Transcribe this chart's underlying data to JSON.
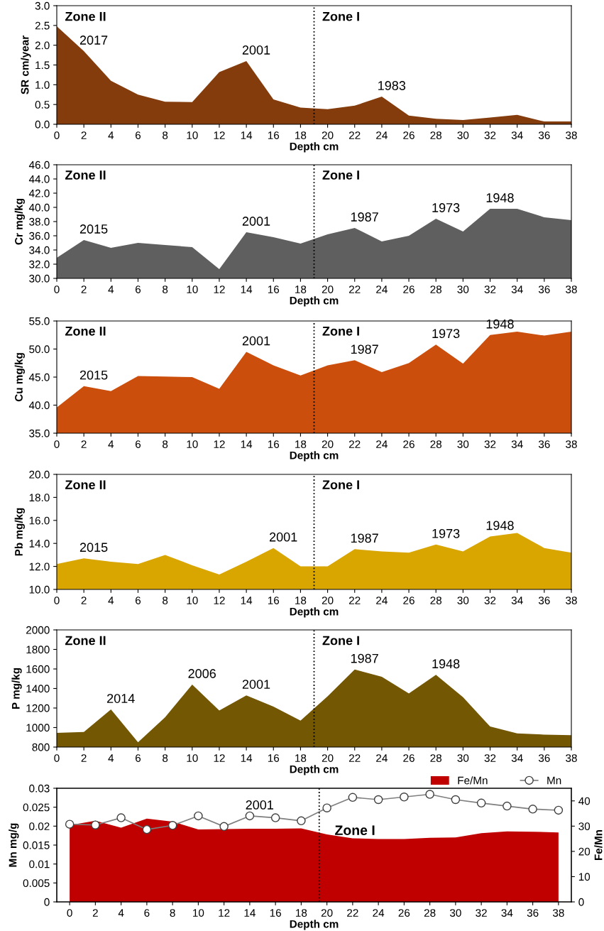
{
  "chart_data": [
    {
      "type": "area",
      "x": [
        0,
        2,
        4,
        6,
        8,
        10,
        12,
        14,
        16,
        18,
        20,
        22,
        24,
        26,
        28,
        30,
        32,
        34,
        36,
        38
      ],
      "xlim": [
        0,
        38
      ],
      "xticks": [
        0,
        2,
        4,
        6,
        8,
        10,
        12,
        14,
        16,
        18,
        20,
        22,
        24,
        26,
        28,
        30,
        32,
        34,
        36,
        38
      ],
      "xlabel": "Depth cm",
      "ylabel": "SR cm/year",
      "ylim": [
        0,
        3
      ],
      "yticks": [
        {
          "value": 0,
          "label": "0.0"
        },
        {
          "value": 0.5,
          "label": "0.5"
        },
        {
          "value": 1,
          "label": "1.0"
        },
        {
          "value": 1.5,
          "label": "1.5"
        },
        {
          "value": 2,
          "label": "2.0"
        },
        {
          "value": 2.5,
          "label": "2.5"
        },
        {
          "value": 3,
          "label": "3.0"
        }
      ],
      "series": [
        {
          "color": "#843c0c",
          "values": [
            2.48,
            1.85,
            1.1,
            0.75,
            0.57,
            0.56,
            1.32,
            1.6,
            0.63,
            0.42,
            0.38,
            0.47,
            0.7,
            0.22,
            0.14,
            0.11,
            0.17,
            0.24,
            0.07,
            0.07
          ]
        }
      ],
      "ref_lines": [
        {
          "axis": "x",
          "value": 19,
          "line_style": "dotted",
          "color": "#000000"
        }
      ],
      "annotations": [
        "Zone II",
        "Zone I",
        {
          "text": "2017",
          "x": 2,
          "y": 1.85
        },
        {
          "text": "2001",
          "x": 14,
          "y": 1.6
        },
        {
          "text": "1983",
          "x": 24,
          "y": 0.7
        }
      ],
      "grid": false
    },
    {
      "type": "area",
      "x": [
        0,
        2,
        4,
        6,
        8,
        10,
        12,
        14,
        16,
        18,
        20,
        22,
        24,
        26,
        28,
        30,
        32,
        34,
        36,
        38
      ],
      "xlim": [
        0,
        38
      ],
      "xticks": [
        0,
        2,
        4,
        6,
        8,
        10,
        12,
        14,
        16,
        18,
        20,
        22,
        24,
        26,
        28,
        30,
        32,
        34,
        36,
        38
      ],
      "xlabel": "Depth cm",
      "ylabel": "Cr mg/kg",
      "ylim": [
        30,
        46
      ],
      "yticks": [
        {
          "value": 30,
          "label": "30.0"
        },
        {
          "value": 32,
          "label": "32.0"
        },
        {
          "value": 34,
          "label": "34.0"
        },
        {
          "value": 36,
          "label": "36.0"
        },
        {
          "value": 38,
          "label": "38.0"
        },
        {
          "value": 40,
          "label": "40.0"
        },
        {
          "value": 42,
          "label": "42.0"
        },
        {
          "value": 44,
          "label": "44.0"
        },
        {
          "value": 46,
          "label": "46.0"
        }
      ],
      "series": [
        {
          "color": "#5f5f5f",
          "values": [
            32.9,
            35.4,
            34.3,
            35.0,
            34.7,
            34.4,
            31.3,
            36.5,
            35.8,
            34.9,
            36.2,
            37.1,
            35.2,
            36.0,
            38.4,
            36.6,
            39.8,
            39.8,
            38.6,
            38.2
          ]
        }
      ],
      "ref_lines": [
        {
          "axis": "x",
          "value": 19,
          "line_style": "dotted",
          "color": "#000000"
        }
      ],
      "annotations": [
        "Zone II",
        "Zone I",
        {
          "text": "2015",
          "x": 2,
          "y": 35.4
        },
        {
          "text": "2001",
          "x": 14,
          "y": 36.5
        },
        {
          "text": "1987",
          "x": 22,
          "y": 37.1
        },
        {
          "text": "1973",
          "x": 28,
          "y": 38.4
        },
        {
          "text": "1948",
          "x": 32,
          "y": 39.8
        }
      ],
      "grid": false
    },
    {
      "type": "area",
      "x": [
        0,
        2,
        4,
        6,
        8,
        10,
        12,
        14,
        16,
        18,
        20,
        22,
        24,
        26,
        28,
        30,
        32,
        34,
        36,
        38
      ],
      "xlim": [
        0,
        38
      ],
      "xticks": [
        0,
        2,
        4,
        6,
        8,
        10,
        12,
        14,
        16,
        18,
        20,
        22,
        24,
        26,
        28,
        30,
        32,
        34,
        36,
        38
      ],
      "xlabel": "Depth cm",
      "ylabel": "Cu mg/kg",
      "ylim": [
        35,
        55
      ],
      "yticks": [
        {
          "value": 35,
          "label": "35.0"
        },
        {
          "value": 40,
          "label": "40.0"
        },
        {
          "value": 45,
          "label": "45.0"
        },
        {
          "value": 50,
          "label": "50.0"
        },
        {
          "value": 55,
          "label": "55.0"
        }
      ],
      "series": [
        {
          "color": "#cc4e0c",
          "values": [
            39.6,
            43.4,
            42.5,
            45.2,
            45.1,
            45.0,
            42.9,
            49.5,
            47.1,
            45.3,
            47.1,
            48.0,
            45.9,
            47.5,
            50.8,
            47.4,
            52.5,
            53.1,
            52.4,
            53.1
          ]
        }
      ],
      "ref_lines": [
        {
          "axis": "x",
          "value": 19,
          "line_style": "dotted",
          "color": "#000000"
        }
      ],
      "annotations": [
        "Zone II",
        "Zone I",
        {
          "text": "2015",
          "x": 2,
          "y": 43.4
        },
        {
          "text": "2001",
          "x": 14,
          "y": 49.5
        },
        {
          "text": "1987",
          "x": 22,
          "y": 48.0
        },
        {
          "text": "1973",
          "x": 28,
          "y": 50.8
        },
        {
          "text": "1948",
          "x": 32,
          "y": 52.5
        }
      ],
      "grid": false
    },
    {
      "type": "area",
      "x": [
        0,
        2,
        4,
        6,
        8,
        10,
        12,
        14,
        16,
        18,
        20,
        22,
        24,
        26,
        28,
        30,
        32,
        34,
        36,
        38
      ],
      "xlim": [
        0,
        38
      ],
      "xticks": [
        0,
        2,
        4,
        6,
        8,
        10,
        12,
        14,
        16,
        18,
        20,
        22,
        24,
        26,
        28,
        30,
        32,
        34,
        36,
        38
      ],
      "xlabel": "Depth cm",
      "ylabel": "Pb mg/kg",
      "ylim": [
        10,
        20
      ],
      "yticks": [
        {
          "value": 10,
          "label": "10.0"
        },
        {
          "value": 12,
          "label": "12.0"
        },
        {
          "value": 14,
          "label": "14.0"
        },
        {
          "value": 16,
          "label": "16.0"
        },
        {
          "value": 18,
          "label": "18.0"
        },
        {
          "value": 20,
          "label": "20.0"
        }
      ],
      "series": [
        {
          "color": "#d9a600",
          "values": [
            12.2,
            12.7,
            12.4,
            12.2,
            13.0,
            12.1,
            11.3,
            12.4,
            13.6,
            12.0,
            12.0,
            13.5,
            13.3,
            13.2,
            13.9,
            13.3,
            14.6,
            14.9,
            13.6,
            13.2
          ]
        }
      ],
      "ref_lines": [
        {
          "axis": "x",
          "value": 19,
          "line_style": "dotted",
          "color": "#000000"
        }
      ],
      "annotations": [
        "Zone II",
        "Zone I",
        {
          "text": "2015",
          "x": 2,
          "y": 12.7
        },
        {
          "text": "2001",
          "x": 16,
          "y": 13.6
        },
        {
          "text": "1987",
          "x": 22,
          "y": 13.5
        },
        {
          "text": "1973",
          "x": 28,
          "y": 13.9
        },
        {
          "text": "1948",
          "x": 32,
          "y": 14.6
        }
      ],
      "grid": false
    },
    {
      "type": "area",
      "x": [
        0,
        2,
        4,
        6,
        8,
        10,
        12,
        14,
        16,
        18,
        20,
        22,
        24,
        26,
        28,
        30,
        32,
        34,
        36,
        38
      ],
      "xlim": [
        0,
        38
      ],
      "xticks": [
        0,
        2,
        4,
        6,
        8,
        10,
        12,
        14,
        16,
        18,
        20,
        22,
        24,
        26,
        28,
        30,
        32,
        34,
        36,
        38
      ],
      "xlabel": "Depth cm",
      "ylabel": "P mg/kg",
      "ylim": [
        800,
        2000
      ],
      "yticks": [
        800,
        1000,
        1200,
        1400,
        1600,
        1800,
        2000
      ],
      "series": [
        {
          "color": "#735702",
          "values": [
            945,
            955,
            1185,
            850,
            1105,
            1440,
            1175,
            1330,
            1215,
            1070,
            1320,
            1595,
            1520,
            1350,
            1540,
            1310,
            1010,
            940,
            928,
            922
          ]
        }
      ],
      "ref_lines": [
        {
          "axis": "x",
          "value": 19,
          "line_style": "dotted",
          "color": "#000000"
        }
      ],
      "annotations": [
        "Zone II",
        "Zone I",
        {
          "text": "2014",
          "x": 4,
          "y": 1185
        },
        {
          "text": "2006",
          "x": 10,
          "y": 1440
        },
        {
          "text": "2001",
          "x": 14,
          "y": 1330
        },
        {
          "text": "1987",
          "x": 22,
          "y": 1595
        },
        {
          "text": "1948",
          "x": 28,
          "y": 1540
        }
      ],
      "grid": false
    },
    {
      "type": "area",
      "x": [
        0,
        2,
        4,
        6,
        8,
        10,
        12,
        14,
        16,
        18,
        20,
        22,
        24,
        26,
        28,
        30,
        32,
        34,
        36,
        38
      ],
      "xlim": [
        -1,
        39
      ],
      "xticks": [
        0,
        2,
        4,
        6,
        8,
        10,
        12,
        14,
        16,
        18,
        20,
        22,
        24,
        26,
        28,
        30,
        32,
        34,
        36,
        38
      ],
      "xlabel": "Depth cm",
      "ylabel": "Mn mg/g",
      "y2label": "Fe/Mn",
      "ylim": [
        0,
        0.03
      ],
      "yticks": [
        0,
        0.005,
        0.01,
        0.015,
        0.02,
        0.025,
        0.03
      ],
      "y2lim": [
        0,
        45
      ],
      "y2ticks": [
        0,
        10,
        20,
        30,
        40
      ],
      "series": [
        {
          "name": "Fe/Mn",
          "type": "area",
          "axis": "y2",
          "color": "#c00000",
          "values": [
            30.4,
            32.1,
            29.4,
            33.0,
            31.8,
            28.7,
            28.8,
            29.0,
            29.0,
            29.1,
            26.7,
            25.2,
            24.9,
            24.9,
            25.4,
            25.5,
            27.2,
            27.9,
            27.8,
            27.5
          ]
        },
        {
          "name": "Mn",
          "type": "line",
          "marker": "circle",
          "color": "#7f7f7f",
          "values": [
            0.0205,
            0.0203,
            0.0222,
            0.0191,
            0.0202,
            0.0227,
            0.0199,
            0.0227,
            0.0222,
            0.0214,
            0.0248,
            0.0276,
            0.027,
            0.0277,
            0.0284,
            0.027,
            0.0261,
            0.0253,
            0.0245,
            0.0242
          ]
        }
      ],
      "ref_lines": [
        {
          "axis": "x",
          "value": 19.4,
          "line_style": "dotted",
          "color": "#000000"
        }
      ],
      "annotations": [
        "Zone I",
        {
          "text": "2001",
          "x": 14,
          "y": 0.0227
        }
      ],
      "legend": "top right",
      "grid": false
    }
  ]
}
